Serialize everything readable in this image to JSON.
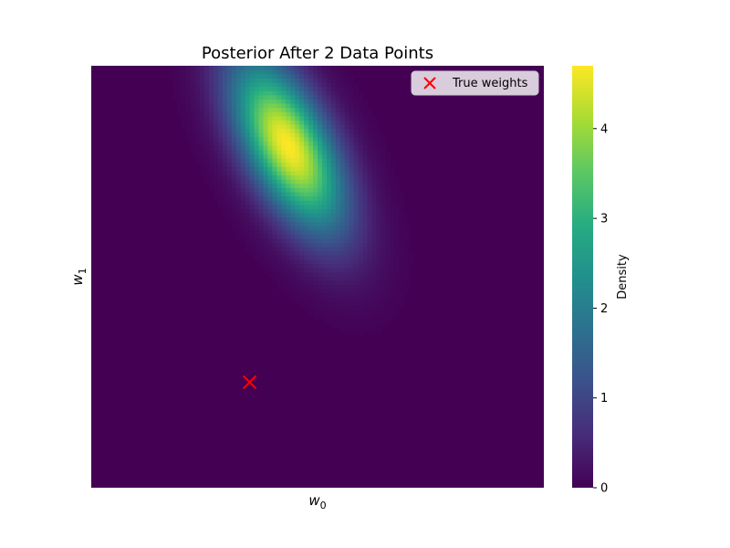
{
  "chart_data": {
    "type": "heatmap",
    "title": "Posterior After 2 Data Points",
    "xlabel": "w",
    "xlabel_sub": "0",
    "ylabel": "w",
    "ylabel_sub": "1",
    "colormap": "viridis",
    "colorbar": {
      "label": "Density",
      "range": [
        0,
        4.7
      ],
      "ticks": [
        0,
        1,
        2,
        3,
        4
      ]
    },
    "posterior": {
      "mean": [
        0.435,
        0.81
      ],
      "std": [
        0.085,
        0.14
      ],
      "correlation": -0.6,
      "peak_density": 4.7
    },
    "markers": [
      {
        "name": "True weights",
        "x": 0.35,
        "y": 0.25,
        "symbol": "x",
        "color": "#ff0000"
      }
    ],
    "legend": {
      "position": "top-right",
      "entries": [
        "True weights"
      ]
    },
    "grid": false
  }
}
